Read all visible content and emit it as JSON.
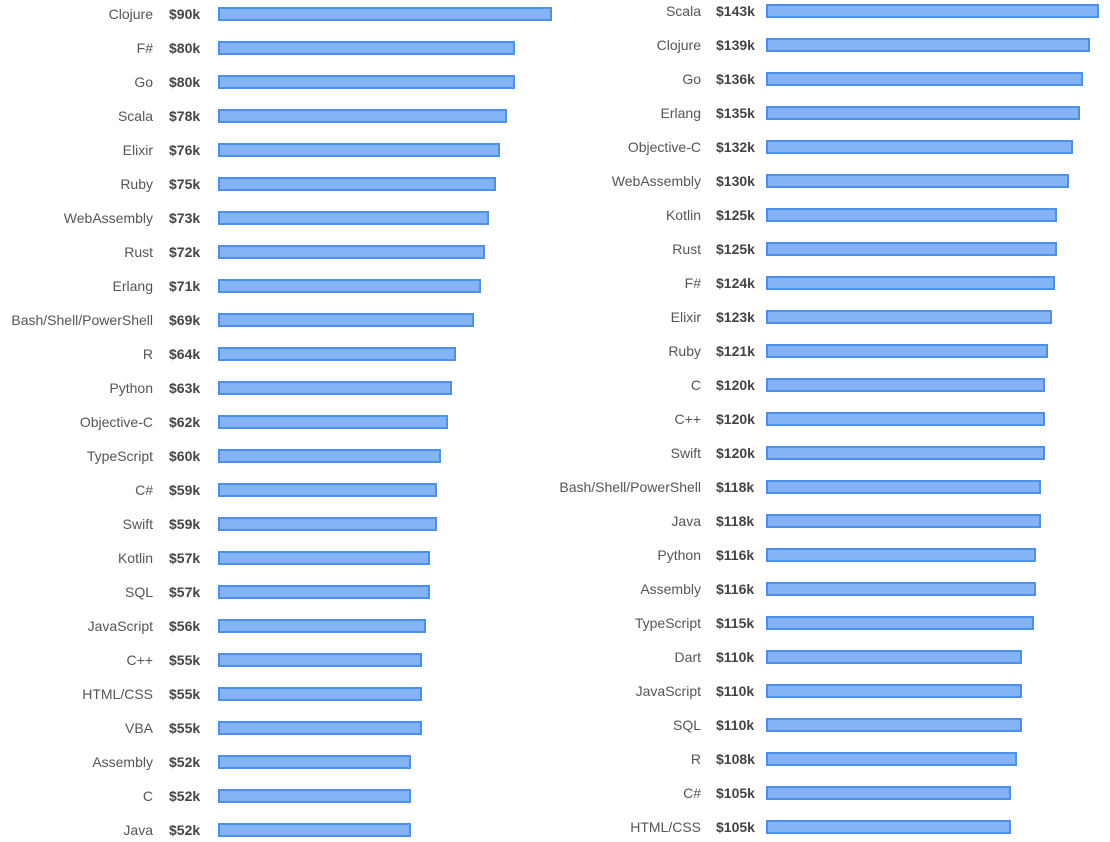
{
  "colors": {
    "bar_fill": "#85b4f6",
    "bar_border": "#4b90ea"
  },
  "chart_data": [
    {
      "type": "bar",
      "orientation": "horizontal",
      "categories": [
        "Clojure",
        "F#",
        "Go",
        "Scala",
        "Elixir",
        "Ruby",
        "WebAssembly",
        "Rust",
        "Erlang",
        "Bash/Shell/PowerShell",
        "R",
        "Python",
        "Objective-C",
        "TypeScript",
        "C#",
        "Swift",
        "Kotlin",
        "SQL",
        "JavaScript",
        "C++",
        "HTML/CSS",
        "VBA",
        "Assembly",
        "C",
        "Java"
      ],
      "values": [
        90,
        80,
        80,
        78,
        76,
        75,
        73,
        72,
        71,
        69,
        64,
        63,
        62,
        60,
        59,
        59,
        57,
        57,
        56,
        55,
        55,
        55,
        52,
        52,
        52
      ],
      "value_labels": [
        "$90k",
        "$80k",
        "$80k",
        "$78k",
        "$76k",
        "$75k",
        "$73k",
        "$72k",
        "$71k",
        "$69k",
        "$64k",
        "$63k",
        "$62k",
        "$60k",
        "$59k",
        "$59k",
        "$57k",
        "$57k",
        "$56k",
        "$55k",
        "$55k",
        "$55k",
        "$52k",
        "$52k",
        "$52k"
      ],
      "xlim": [
        0,
        90
      ]
    },
    {
      "type": "bar",
      "orientation": "horizontal",
      "categories": [
        "Scala",
        "Clojure",
        "Go",
        "Erlang",
        "Objective-C",
        "WebAssembly",
        "Kotlin",
        "Rust",
        "F#",
        "Elixir",
        "Ruby",
        "C",
        "C++",
        "Swift",
        "Bash/Shell/PowerShell",
        "Java",
        "Python",
        "Assembly",
        "TypeScript",
        "Dart",
        "JavaScript",
        "SQL",
        "R",
        "C#",
        "HTML/CSS"
      ],
      "values": [
        143,
        139,
        136,
        135,
        132,
        130,
        125,
        125,
        124,
        123,
        121,
        120,
        120,
        120,
        118,
        118,
        116,
        116,
        115,
        110,
        110,
        110,
        108,
        105,
        105
      ],
      "value_labels": [
        "$143k",
        "$139k",
        "$136k",
        "$135k",
        "$132k",
        "$130k",
        "$125k",
        "$125k",
        "$124k",
        "$123k",
        "$121k",
        "$120k",
        "$120k",
        "$120k",
        "$118k",
        "$118k",
        "$116k",
        "$116k",
        "$115k",
        "$110k",
        "$110k",
        "$110k",
        "$108k",
        "$105k",
        "$105k"
      ],
      "xlim": [
        0,
        143
      ]
    }
  ]
}
